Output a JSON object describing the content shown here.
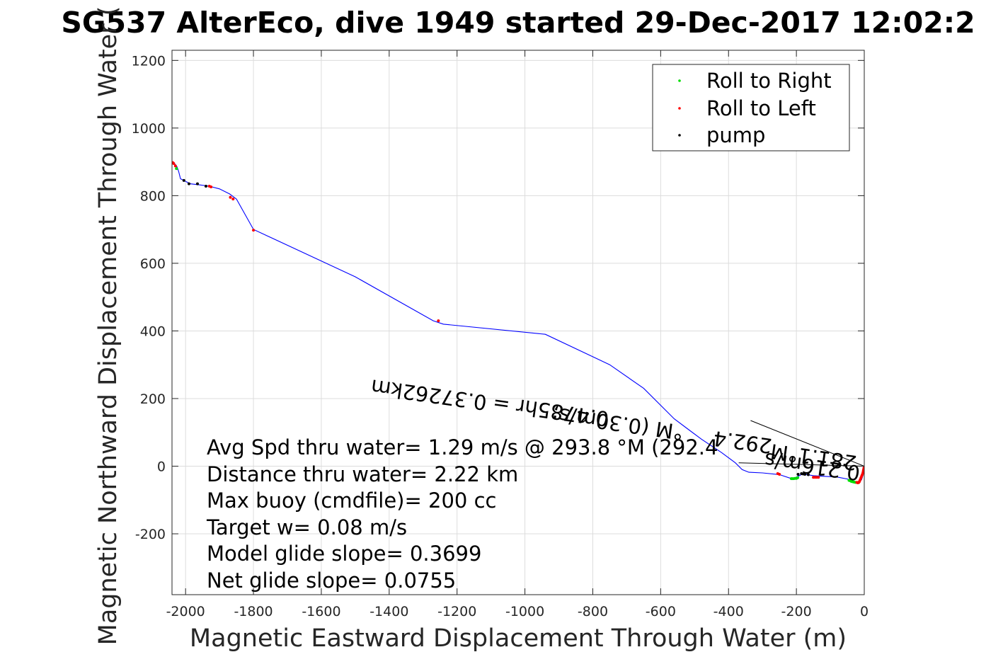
{
  "chart_data": {
    "type": "line",
    "title": "SG537 AlterEco, dive 1949 started 29-Dec-2017 12:02:2",
    "xlabel": "Magnetic Eastward Displacement Through Water (m)",
    "ylabel": "Magnetic Northward Displacement Through Water (",
    "xlim": [
      -2040,
      0
    ],
    "ylim": [
      -380,
      1230
    ],
    "xticks": [
      -2000,
      -1800,
      -1600,
      -1400,
      -1200,
      -1000,
      -800,
      -600,
      -400,
      -200,
      0
    ],
    "yticks": [
      -200,
      0,
      200,
      400,
      600,
      800,
      1000,
      1200
    ],
    "grid": true,
    "legend_position": "top-right",
    "legend": [
      {
        "label": "Roll to Right",
        "color": "#00dd00"
      },
      {
        "label": "Roll to Left",
        "color": "#ff0000"
      },
      {
        "label": "pump",
        "color": "#000000"
      }
    ],
    "track": {
      "color": "#0000ff",
      "x": [
        0,
        -3,
        -8,
        -15,
        -20,
        -30,
        -50,
        -80,
        -120,
        -150,
        -170,
        -185,
        -195,
        -205,
        -220,
        -250,
        -300,
        -340,
        -360,
        -380,
        -420,
        -480,
        -520,
        -560,
        -650,
        -750,
        -940,
        -1240,
        -1270,
        -1500,
        -1800,
        -1850,
        -1870,
        -1900,
        -1930,
        -1960,
        -1985,
        -2000,
        -2015,
        -2020,
        -2025,
        -2030,
        -2035,
        -2040
      ],
      "y": [
        -5,
        -25,
        -40,
        -48,
        -50,
        -45,
        -38,
        -32,
        -30,
        -28,
        -25,
        -25,
        -30,
        -35,
        -35,
        -25,
        -20,
        -18,
        -10,
        10,
        40,
        80,
        110,
        140,
        230,
        300,
        390,
        420,
        430,
        560,
        700,
        790,
        805,
        820,
        828,
        832,
        835,
        842,
        850,
        870,
        885,
        892,
        896,
        900
      ]
    },
    "roll_right_points": {
      "x": [
        -215,
        -212,
        -208,
        -204,
        -200,
        -196,
        -45,
        -42,
        -38,
        -34,
        -30,
        -26,
        -2027
      ],
      "y": [
        -37,
        -37,
        -37,
        -36,
        -36,
        -34,
        -42,
        -43,
        -45,
        -46,
        -47,
        -48,
        880
      ]
    },
    "roll_left_points": {
      "x": [
        -1,
        -2,
        -3,
        -4,
        -6,
        -8,
        -10,
        -12,
        -14,
        -16,
        -18,
        -20,
        -22,
        -150,
        -145,
        -140,
        -135,
        -255,
        -250,
        -1255,
        -1800,
        -1860,
        -1868,
        -1925,
        -1930,
        -2035,
        -2030,
        -2038
      ],
      "y": [
        -5,
        -10,
        -15,
        -20,
        -25,
        -30,
        -35,
        -40,
        -45,
        -48,
        -49,
        -49,
        -48,
        -33,
        -33,
        -33,
        -33,
        -22,
        -24,
        430,
        698,
        790,
        795,
        826,
        828,
        895,
        888,
        898
      ]
    },
    "pump_points": {
      "x": [
        -195,
        -185,
        -180,
        -175,
        -165,
        -1990,
        -2005,
        -1965,
        -1940
      ],
      "y": [
        -24,
        -22,
        -23,
        -24,
        -25,
        835,
        845,
        835,
        828
      ]
    },
    "current_lines": {
      "color": "#000000",
      "segments": [
        {
          "x": [
            0,
            -335
          ],
          "y": [
            0,
            135
          ]
        },
        {
          "x": [
            0,
            -370
          ],
          "y": [
            0,
            10
          ]
        }
      ]
    },
    "rotated_annotations": [
      {
        "text": "0.37262km",
        "x": -1110,
        "y": 208,
        "angle_deg": 188
      },
      {
        "text": "0.4785hr =",
        "x": -750,
        "y": 160,
        "angle_deg": 188
      },
      {
        "text": "°M (0.30m/s;",
        "x": -530,
        "y": 120,
        "angle_deg": 188
      },
      {
        "text": "292.4",
        "x": -270,
        "y": 80,
        "angle_deg": 188
      },
      {
        "text": "0.216m/s",
        "x": -10,
        "y": 0,
        "angle_deg": 188
      },
      {
        "text": "281.1°M",
        "x": -20,
        "y": 30,
        "angle_deg": 188
      }
    ],
    "annotations": [
      "Avg Spd thru water=  1.29 m/s @ 293.8  °M (292.4",
      "Distance thru water=  2.22 km",
      "Max buoy (cmdfile)= 200 cc",
      "Target w= 0.08 m/s",
      "Model glide slope= 0.3699",
      "Net glide slope= 0.0755"
    ]
  }
}
